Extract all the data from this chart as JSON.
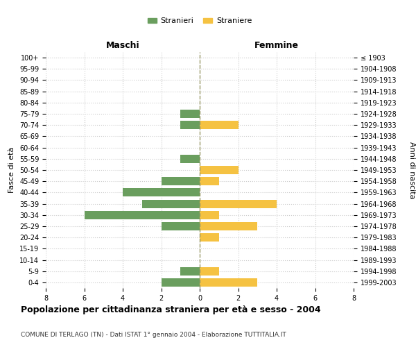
{
  "age_groups": [
    "100+",
    "95-99",
    "90-94",
    "85-89",
    "80-84",
    "75-79",
    "70-74",
    "65-69",
    "60-64",
    "55-59",
    "50-54",
    "45-49",
    "40-44",
    "35-39",
    "30-34",
    "25-29",
    "20-24",
    "15-19",
    "10-14",
    "5-9",
    "0-4"
  ],
  "birth_years": [
    "≤ 1903",
    "1904-1908",
    "1909-1913",
    "1914-1918",
    "1919-1923",
    "1924-1928",
    "1929-1933",
    "1934-1938",
    "1939-1943",
    "1944-1948",
    "1949-1953",
    "1954-1958",
    "1959-1963",
    "1964-1968",
    "1969-1973",
    "1974-1978",
    "1979-1983",
    "1984-1988",
    "1989-1993",
    "1994-1998",
    "1999-2003"
  ],
  "maschi": [
    0,
    0,
    0,
    0,
    0,
    1,
    1,
    0,
    0,
    1,
    0,
    2,
    4,
    3,
    6,
    2,
    0,
    0,
    0,
    1,
    2
  ],
  "femmine": [
    0,
    0,
    0,
    0,
    0,
    0,
    2,
    0,
    0,
    0,
    2,
    1,
    0,
    4,
    1,
    3,
    1,
    0,
    0,
    1,
    3
  ],
  "male_color": "#6a9e5e",
  "female_color": "#f5c242",
  "bar_height": 0.75,
  "xlim": 8,
  "title": "Popolazione per cittadinanza straniera per età e sesso - 2004",
  "subtitle": "COMUNE DI TERLAGO (TN) - Dati ISTAT 1° gennaio 2004 - Elaborazione TUTTITALIA.IT",
  "ylabel_left": "Fasce di età",
  "ylabel_right": "Anni di nascita",
  "label_maschi": "Maschi",
  "label_femmine": "Femmine",
  "legend_stranieri": "Stranieri",
  "legend_straniere": "Straniere",
  "grid_color": "#cccccc",
  "bg_color": "#ffffff",
  "center_line_color": "#999966"
}
